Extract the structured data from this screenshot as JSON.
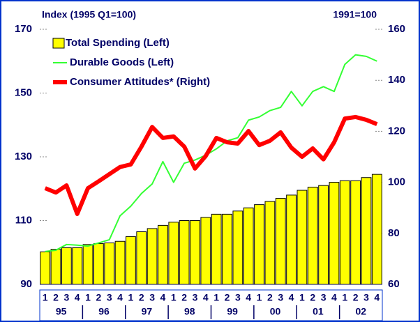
{
  "chart_data": {
    "type": "bar-line",
    "left_axis_label": "Index (1995 Q1=100)",
    "right_axis_label": "1991=100",
    "categories": [
      "1",
      "2",
      "3",
      "4",
      "1",
      "2",
      "3",
      "4",
      "1",
      "2",
      "3",
      "4",
      "1",
      "2",
      "3",
      "4",
      "1",
      "2",
      "3",
      "4",
      "1",
      "2",
      "3",
      "4",
      "1",
      "2",
      "3",
      "4",
      "1",
      "2",
      "3",
      "4"
    ],
    "years": [
      "95",
      "96",
      "97",
      "98",
      "99",
      "00",
      "01",
      "02"
    ],
    "ylim": [
      90,
      170
    ],
    "yticks": [
      90,
      110,
      130,
      150,
      170
    ],
    "y2lim": [
      60,
      160
    ],
    "y2ticks": [
      60,
      80,
      100,
      120,
      140,
      160
    ],
    "series": [
      {
        "name": "Total Spending (Left)",
        "kind": "bar",
        "color": "#ffff00",
        "values": [
          100.2,
          101,
          101.5,
          101.5,
          102.5,
          102.8,
          103,
          103.5,
          105,
          106.5,
          107.5,
          108.5,
          109.5,
          110,
          110,
          111,
          112,
          112,
          113,
          114,
          115,
          116,
          117,
          118,
          119.5,
          120.5,
          121,
          122,
          122.5,
          122.5,
          123.5,
          124.5
        ]
      },
      {
        "name": "Durable Goods (Left)",
        "kind": "line",
        "color": "#33ff33",
        "values": [
          100.3,
          100.7,
          102.5,
          102.3,
          102,
          103,
          104,
          111.5,
          114.5,
          118.5,
          121.5,
          128.5,
          122,
          128,
          129,
          130.5,
          132.5,
          135,
          136,
          141.5,
          142.5,
          144.5,
          145.5,
          150.5,
          146,
          150.5,
          152,
          150.5,
          159,
          162,
          161.5,
          160
        ]
      },
      {
        "name": "Consumer Attitudes* (Right)",
        "kind": "line",
        "axis": "y2",
        "color": "#ff0000",
        "values": [
          97.7,
          96,
          98.8,
          87.6,
          97.7,
          100.4,
          103.2,
          106,
          107,
          114,
          121.7,
          117.4,
          118,
          114,
          105.4,
          110.3,
          117.4,
          115.7,
          115.2,
          120.1,
          114.6,
          116.3,
          119.6,
          113.6,
          110,
          113.3,
          109,
          115.7,
          125,
          125.6,
          124.5,
          122.8
        ]
      }
    ]
  }
}
